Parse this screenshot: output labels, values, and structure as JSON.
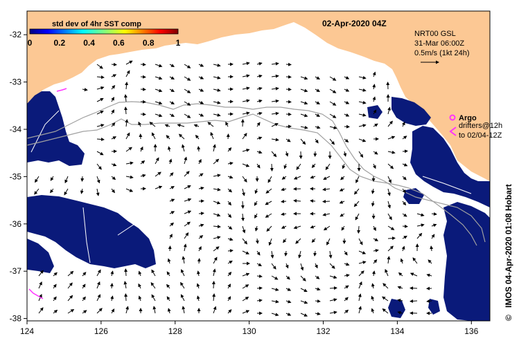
{
  "header": {
    "date_title": "02-Apr-2020 04Z"
  },
  "colorbar": {
    "title": "std dev of 4hr SST comp",
    "ticks": [
      "0",
      "0.2",
      "0.4",
      "0.6",
      "0.8",
      "1"
    ],
    "range": [
      0,
      1
    ]
  },
  "current_info": {
    "line1": "NRT00 GSL",
    "line2": "31-Mar 06:00Z",
    "line3": "0.5m/s (1kt 24h)"
  },
  "legend": {
    "argo_label": "Argo",
    "drifter_line1": "drifters@12h",
    "drifter_line2": "to 02/04-12Z"
  },
  "credit": "IMOS 04-Apr-2020 01:08 Hobart",
  "copyright_symbol": "©",
  "axes": {
    "x_ticks": [
      "124",
      "126",
      "128",
      "130",
      "132",
      "134",
      "136"
    ],
    "y_ticks": [
      "-32",
      "-33",
      "-34",
      "-35",
      "-36",
      "-37",
      "-38"
    ],
    "x_range": [
      124,
      136.5
    ],
    "y_range": [
      -38.05,
      -31.5
    ]
  },
  "colors": {
    "land": "#fcc894",
    "cloud": "#0a1a7a",
    "argo": "#ff33ff",
    "track": "#a0a0a0",
    "background": "#ffffff"
  }
}
